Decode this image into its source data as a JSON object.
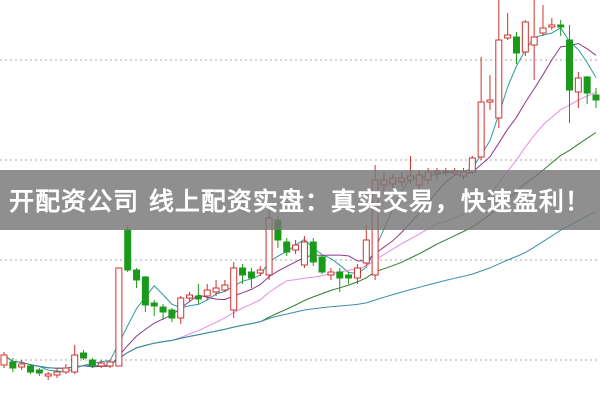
{
  "banner": {
    "text": "开配资公司 线上配资实盘：真实交易，快速盈利！"
  },
  "chart_data": {
    "type": "candlestick",
    "title": "",
    "xlabel": "",
    "ylabel": "",
    "ylim": [
      0,
      100
    ],
    "grid": {
      "horizontal": true,
      "style": "dotted",
      "levels": [
        10,
        35,
        60,
        85
      ]
    },
    "colors": {
      "up": "#d0312d",
      "down": "#1a9a1a",
      "grid": "#aaaaaa"
    },
    "moving_averages": [
      {
        "period": 5,
        "color": "#2a9d9d"
      },
      {
        "period": 10,
        "color": "#8b3a8b"
      },
      {
        "period": 20,
        "color": "#e58ee5"
      },
      {
        "period": 30,
        "color": "#2e7d2e"
      },
      {
        "period": 60,
        "color": "#3a8fa8"
      }
    ],
    "candles_ohlc": [
      [
        8.75,
        11.25,
        12,
        8
      ],
      [
        9.5,
        8,
        10.5,
        7
      ],
      [
        8.25,
        9,
        10,
        7.5
      ],
      [
        8.5,
        7,
        9,
        6.5
      ],
      [
        7.5,
        6.75,
        8,
        6
      ],
      [
        6,
        6.5,
        7,
        5
      ],
      [
        6.25,
        7,
        8,
        5.5
      ],
      [
        7,
        8,
        9,
        6.5
      ],
      [
        7,
        11.25,
        13.75,
        6.5
      ],
      [
        11.75,
        10.5,
        12.5,
        10
      ],
      [
        10,
        8.75,
        10.5,
        8
      ],
      [
        8.5,
        9.25,
        10,
        8
      ],
      [
        8.5,
        9.5,
        10,
        8
      ],
      [
        8.5,
        33,
        33,
        8.5
      ],
      [
        42.5,
        32.5,
        43.75,
        32
      ],
      [
        32.5,
        30,
        33,
        28
      ],
      [
        30.75,
        23.75,
        31,
        22
      ],
      [
        24.25,
        23.5,
        25,
        21
      ],
      [
        23.25,
        22,
        24,
        20
      ],
      [
        22.5,
        20.5,
        23,
        19.5
      ],
      [
        20.5,
        25.5,
        26,
        19
      ],
      [
        25.5,
        26.25,
        27,
        24.5
      ],
      [
        26,
        25.25,
        29,
        24
      ],
      [
        26,
        27.5,
        29,
        25
      ],
      [
        27,
        28,
        30,
        26
      ],
      [
        27.5,
        28.75,
        30,
        27
      ],
      [
        22.5,
        33,
        34.5,
        20.5
      ],
      [
        33,
        31.25,
        34,
        29
      ],
      [
        32,
        30.5,
        33,
        28
      ],
      [
        31.75,
        32.5,
        33.5,
        31
      ],
      [
        31.25,
        45.5,
        47.5,
        30
      ],
      [
        45,
        40,
        46,
        38
      ],
      [
        39.5,
        37,
        40.5,
        36
      ],
      [
        37.5,
        38.75,
        40,
        36.5
      ],
      [
        33.75,
        39.5,
        41,
        33
      ],
      [
        39.5,
        34.5,
        40.5,
        33.5
      ],
      [
        35.75,
        32,
        36,
        31.5
      ],
      [
        31.25,
        32,
        33,
        30
      ],
      [
        32,
        30.5,
        33,
        27
      ],
      [
        31.25,
        30.5,
        32,
        29
      ],
      [
        30.5,
        33,
        34,
        29
      ],
      [
        34.25,
        40,
        43.75,
        33.5
      ],
      [
        31.25,
        55,
        58.75,
        30
      ],
      [
        53.75,
        55,
        57,
        52
      ],
      [
        54,
        55.5,
        56.5,
        53
      ],
      [
        54.5,
        55.5,
        57,
        53.5
      ],
      [
        55,
        56,
        61,
        54
      ],
      [
        53.75,
        56.25,
        57.5,
        52
      ],
      [
        55,
        57,
        58,
        54
      ],
      [
        56.75,
        57.25,
        58,
        55
      ],
      [
        57,
        57.25,
        58,
        56
      ],
      [
        56.75,
        57.25,
        58,
        56
      ],
      [
        56,
        57,
        58,
        55
      ],
      [
        57,
        60.5,
        61,
        56.5
      ],
      [
        60.75,
        74.5,
        85.75,
        60
      ],
      [
        74.5,
        75,
        81.25,
        72.5
      ],
      [
        70.5,
        90,
        100,
        68
      ],
      [
        90.5,
        91.25,
        96.75,
        90
      ],
      [
        90.75,
        86.75,
        92,
        84
      ],
      [
        87,
        94.5,
        95,
        86
      ],
      [
        88.75,
        90.75,
        100,
        80
      ],
      [
        91.75,
        93,
        98.75,
        91
      ],
      [
        93.25,
        93.75,
        95.5,
        92.5
      ],
      [
        93.75,
        93.25,
        95,
        91
      ],
      [
        90,
        77.5,
        93.75,
        69.25
      ],
      [
        77,
        80.5,
        82,
        73
      ],
      [
        80.75,
        76.75,
        81,
        74
      ],
      [
        76.25,
        75,
        78,
        73
      ]
    ]
  }
}
